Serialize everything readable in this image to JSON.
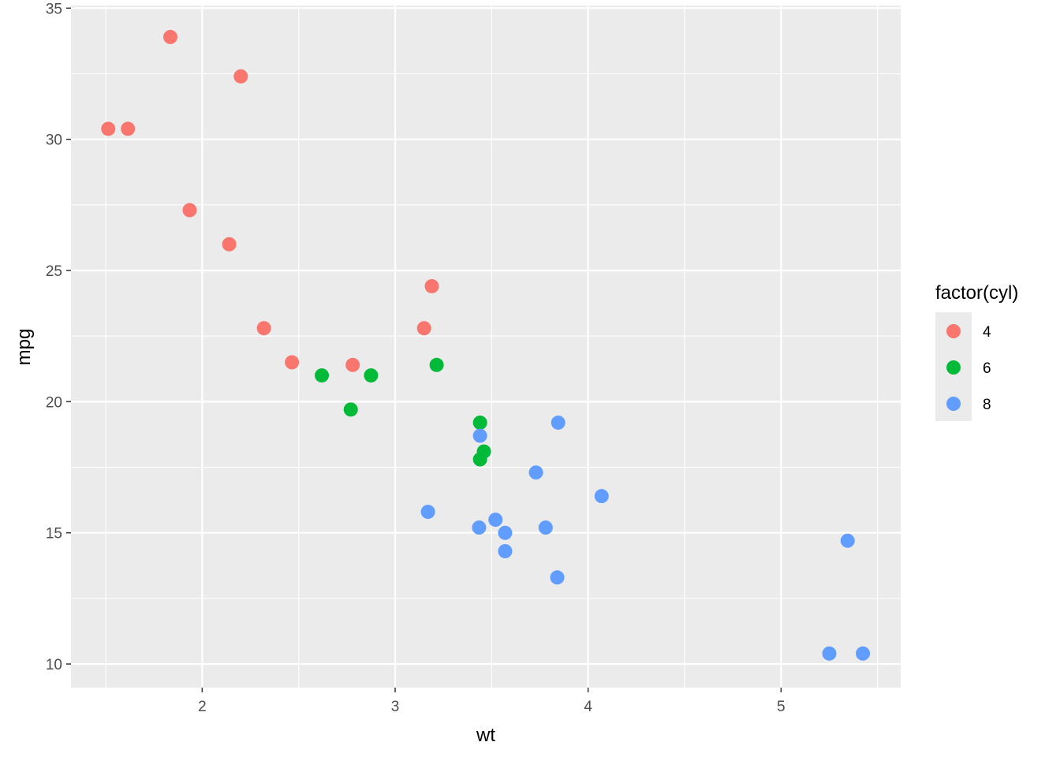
{
  "chart_data": {
    "type": "scatter",
    "xlabel": "wt",
    "ylabel": "mpg",
    "xlim": [
      1.32,
      5.62
    ],
    "ylim": [
      9.1,
      35.1
    ],
    "x_ticks": [
      2,
      3,
      4,
      5
    ],
    "x_tick_labels": [
      "2",
      "3",
      "4",
      "5"
    ],
    "y_ticks": [
      10,
      15,
      20,
      25,
      30,
      35
    ],
    "y_tick_labels": [
      "10",
      "15",
      "20",
      "25",
      "30",
      "35"
    ],
    "grid": true,
    "legend": {
      "title": "factor(cyl)",
      "placement": "right",
      "entries": [
        "4",
        "6",
        "8"
      ]
    },
    "colors": {
      "4": "#F8766D",
      "6": "#00BA38",
      "8": "#619CFF"
    },
    "series": [
      {
        "name": "4",
        "points": [
          [
            1.513,
            30.4
          ],
          [
            1.615,
            30.4
          ],
          [
            1.835,
            33.9
          ],
          [
            1.935,
            27.3
          ],
          [
            2.14,
            26.0
          ],
          [
            2.2,
            32.4
          ],
          [
            2.32,
            22.8
          ],
          [
            2.465,
            21.5
          ],
          [
            2.78,
            21.4
          ],
          [
            3.15,
            22.8
          ],
          [
            3.19,
            24.4
          ]
        ]
      },
      {
        "name": "6",
        "points": [
          [
            2.62,
            21.0
          ],
          [
            2.77,
            19.7
          ],
          [
            2.875,
            21.0
          ],
          [
            3.215,
            21.4
          ],
          [
            3.44,
            19.2
          ],
          [
            3.44,
            17.8
          ],
          [
            3.46,
            18.1
          ]
        ]
      },
      {
        "name": "8",
        "points": [
          [
            3.17,
            15.8
          ],
          [
            3.435,
            15.2
          ],
          [
            3.44,
            18.7
          ],
          [
            3.52,
            15.5
          ],
          [
            3.57,
            15.0
          ],
          [
            3.57,
            14.3
          ],
          [
            3.73,
            17.3
          ],
          [
            3.78,
            15.2
          ],
          [
            3.84,
            13.3
          ],
          [
            3.845,
            19.2
          ],
          [
            4.07,
            16.4
          ],
          [
            5.25,
            10.4
          ],
          [
            5.345,
            14.7
          ],
          [
            5.424,
            10.4
          ]
        ]
      }
    ]
  }
}
